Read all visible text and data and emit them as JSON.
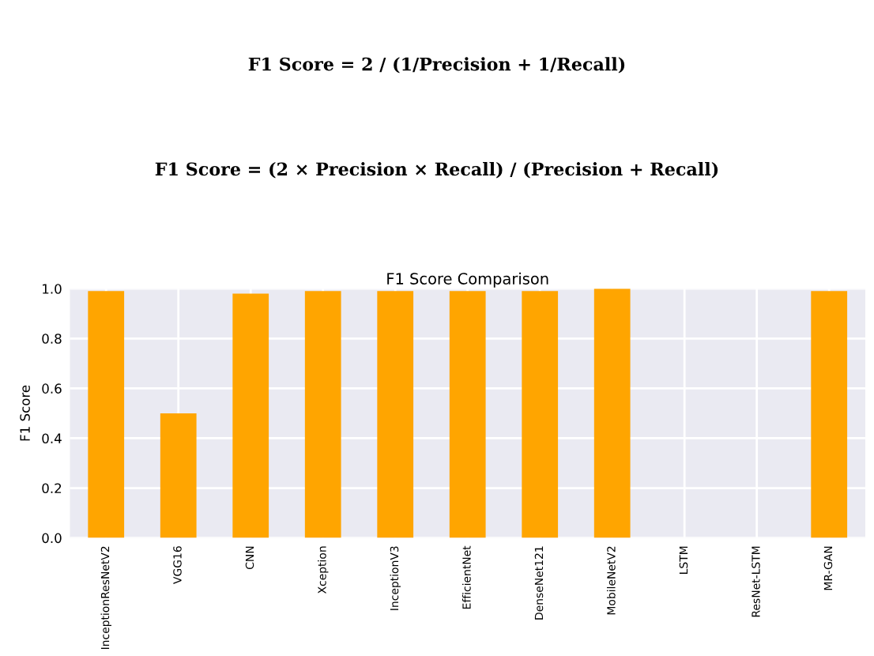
{
  "chart_data": {
    "type": "bar",
    "title": "F1 Score Comparison",
    "ylabel": "F1 Score",
    "categories": [
      "InceptionResNetV2",
      "VGG16",
      "CNN",
      "Xception",
      "InceptionV3",
      "EfficientNet",
      "DenseNet121",
      "MobileNetV2",
      "LSTM",
      "ResNet-LSTM",
      "MR-GAN"
    ],
    "values": [
      0.99,
      0.5,
      0.98,
      0.99,
      0.99,
      0.99,
      0.99,
      1.0,
      0,
      0,
      0.99
    ],
    "color": "#ffa500",
    "ylim": [
      0,
      1.0
    ],
    "yticks": [
      {
        "value": 0,
        "label": "0.0"
      },
      0.2,
      0.4,
      0.6,
      0.8,
      {
        "value": 1,
        "label": "1.0"
      }
    ],
    "grid": true,
    "annotations": [
      "F1 Score = 2 / (1/Precision + 1/Recall)",
      "F1 Score = (2 × Precision × Recall) / (Precision + Recall)"
    ]
  }
}
